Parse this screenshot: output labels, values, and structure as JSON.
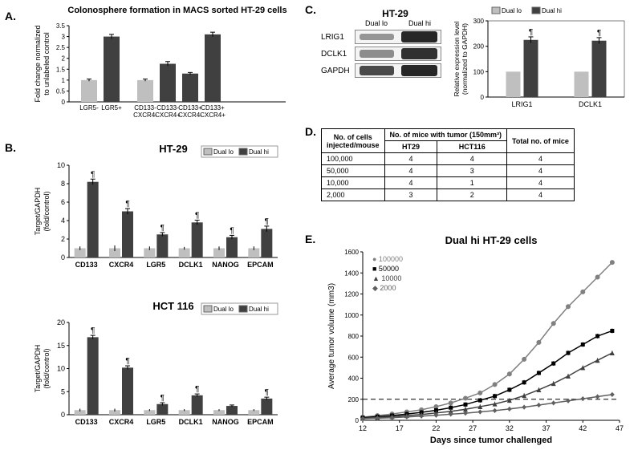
{
  "colors": {
    "light_bar": "#bfbfbf",
    "dark_bar": "#404040",
    "line_100000": "#808080",
    "line_50000": "#000000",
    "line_10000": "#404040",
    "line_2000": "#606060",
    "background": "#ffffff"
  },
  "panels": {
    "A": "A.",
    "B": "B.",
    "C": "C.",
    "D": "D.",
    "E": "E."
  },
  "panelA": {
    "title": "Colonosphere formation in MACS sorted HT-29 cells",
    "ylabel": "Fold change normalized\nto unlabeled control",
    "ylim": [
      0,
      3.5
    ],
    "ytick_step": 0.5,
    "groups": [
      {
        "labels": [
          "LGR5-",
          "LGR5+"
        ],
        "values": [
          1.0,
          3.0
        ],
        "errs": [
          0.05,
          0.1
        ],
        "colors": [
          "light",
          "dark"
        ]
      },
      {
        "labels": [
          "CD133-\nCXCR4-",
          "CD133-\nCXCR4+",
          "CD133+\nCXCR4-",
          "CD133+\nCXCR4+"
        ],
        "values": [
          1.0,
          1.75,
          1.3,
          3.1
        ],
        "errs": [
          0.05,
          0.1,
          0.05,
          0.1
        ],
        "colors": [
          "light",
          "dark",
          "dark",
          "dark"
        ]
      }
    ]
  },
  "panelB": {
    "ylabel": "Target/GAPDH\n(fold/control)",
    "legend": {
      "lo": "Dual lo",
      "hi": "Dual hi"
    },
    "categories": [
      "CD133",
      "CXCR4",
      "LGR5",
      "DCLK1",
      "NANOG",
      "EPCAM"
    ],
    "ht29": {
      "title": "HT-29",
      "ylim": [
        0,
        10
      ],
      "ytick_step": 2,
      "lo": [
        1,
        1,
        1,
        1,
        1,
        1
      ],
      "hi": [
        8.2,
        5.0,
        2.5,
        3.8,
        2.2,
        3.1
      ],
      "err_lo": [
        0.2,
        0.3,
        0.2,
        0.15,
        0.2,
        0.2
      ],
      "err_hi": [
        0.3,
        0.3,
        0.2,
        0.25,
        0.2,
        0.3
      ],
      "sig": [
        true,
        true,
        true,
        true,
        true,
        true
      ]
    },
    "hct116": {
      "title": "HCT 116",
      "ylim": [
        0,
        20
      ],
      "ytick_step": 5,
      "lo": [
        1,
        1,
        1,
        1,
        1,
        1
      ],
      "hi": [
        16.8,
        10.2,
        2.3,
        4.2,
        1.9,
        3.5
      ],
      "err_lo": [
        0.3,
        0.3,
        0.2,
        0.2,
        0.2,
        0.2
      ],
      "err_hi": [
        0.4,
        0.4,
        0.3,
        0.3,
        0.2,
        0.3
      ],
      "sig": [
        true,
        true,
        true,
        true,
        false,
        true
      ]
    }
  },
  "panelC": {
    "header": "HT-29",
    "lanes": [
      "Dual lo",
      "Dual hi"
    ],
    "rows": [
      "LRIG1",
      "DCLK1",
      "GAPDH"
    ],
    "band_intensity": {
      "LRIG1": [
        0.35,
        0.95
      ],
      "DCLK1": [
        0.4,
        0.9
      ],
      "GAPDH": [
        0.85,
        0.95
      ]
    },
    "bar": {
      "ylabel": "Relative expression level\n(normalized to GAPDH)",
      "ylim": [
        0,
        300
      ],
      "ytick_step": 100,
      "categories": [
        "LRIG1",
        "DCLK1"
      ],
      "lo": [
        100,
        100
      ],
      "hi": [
        225,
        222
      ],
      "err_lo": [
        8,
        8
      ],
      "err_hi": [
        12,
        12
      ],
      "legend": {
        "lo": "Dual lo",
        "hi": "Dual hi"
      },
      "sig": [
        true,
        true
      ]
    }
  },
  "panelD": {
    "headers": [
      "No. of cells\ninjected/mouse",
      "HT29",
      "HCT116",
      "Total no. of mice"
    ],
    "group_header": "No. of mice with tumor (150mm³)",
    "rows": [
      [
        "100,000",
        "4",
        "4",
        "4"
      ],
      [
        "50,000",
        "4",
        "3",
        "4"
      ],
      [
        "10,000",
        "4",
        "1",
        "4"
      ],
      [
        "2,000",
        "3",
        "2",
        "4"
      ]
    ]
  },
  "panelE": {
    "title": "Dual hi HT-29 cells",
    "ylabel": "Average tumor volume (mm3)",
    "xlabel": "Days since tumor challenged",
    "xlim": [
      12,
      47
    ],
    "xtick_step": 5,
    "ylim": [
      0,
      1600
    ],
    "ytick_step": 200,
    "ref_line_y": 200,
    "series": [
      {
        "name": "100000",
        "marker": "circle",
        "color": "#808080",
        "x": [
          12,
          14,
          16,
          18,
          20,
          22,
          24,
          26,
          28,
          30,
          32,
          34,
          36,
          38,
          40,
          42,
          44,
          46
        ],
        "y": [
          30,
          45,
          60,
          80,
          100,
          130,
          165,
          210,
          260,
          340,
          440,
          580,
          740,
          920,
          1080,
          1220,
          1360,
          1500
        ]
      },
      {
        "name": "50000",
        "marker": "square",
        "color": "#000000",
        "x": [
          12,
          14,
          16,
          18,
          20,
          22,
          24,
          26,
          28,
          30,
          32,
          34,
          36,
          38,
          40,
          42,
          44,
          46
        ],
        "y": [
          25,
          35,
          45,
          60,
          75,
          95,
          120,
          150,
          190,
          230,
          290,
          360,
          450,
          540,
          640,
          720,
          800,
          850
        ]
      },
      {
        "name": "10000",
        "marker": "triangle",
        "color": "#404040",
        "x": [
          12,
          14,
          16,
          18,
          20,
          22,
          24,
          26,
          28,
          30,
          32,
          34,
          36,
          38,
          40,
          42,
          44,
          46
        ],
        "y": [
          20,
          28,
          35,
          45,
          55,
          70,
          85,
          105,
          130,
          155,
          190,
          235,
          290,
          350,
          420,
          500,
          570,
          640
        ]
      },
      {
        "name": "2000",
        "marker": "diamond",
        "color": "#606060",
        "x": [
          12,
          14,
          16,
          18,
          20,
          22,
          24,
          26,
          28,
          30,
          32,
          34,
          36,
          38,
          40,
          42,
          44,
          46
        ],
        "y": [
          15,
          20,
          25,
          32,
          40,
          48,
          58,
          68,
          80,
          92,
          108,
          125,
          145,
          165,
          185,
          205,
          225,
          245
        ]
      }
    ]
  }
}
